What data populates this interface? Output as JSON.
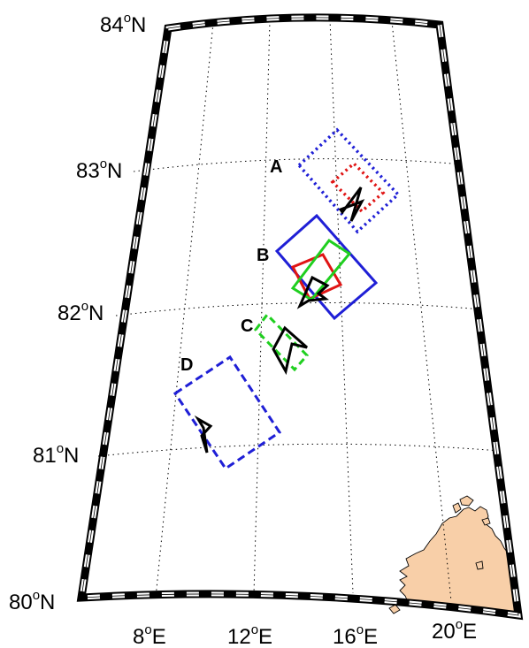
{
  "map": {
    "lat_labels": [
      {
        "deg": "84",
        "sup": "o",
        "hem": "N"
      },
      {
        "deg": "83",
        "sup": "o",
        "hem": "N"
      },
      {
        "deg": "82",
        "sup": "o",
        "hem": "N"
      },
      {
        "deg": "81",
        "sup": "o",
        "hem": "N"
      },
      {
        "deg": "80",
        "sup": "o",
        "hem": "N"
      }
    ],
    "lon_labels": [
      {
        "deg": "8",
        "sup": "o",
        "hem": "E"
      },
      {
        "deg": "12",
        "sup": "o",
        "hem": "E"
      },
      {
        "deg": "16",
        "sup": "o",
        "hem": "E"
      },
      {
        "deg": "20",
        "sup": "o",
        "hem": "E"
      }
    ],
    "regions": [
      {
        "label": "A",
        "linestyle": "dotted"
      },
      {
        "label": "B",
        "linestyle": "solid"
      },
      {
        "label": "C",
        "linestyle": "dashed"
      },
      {
        "label": "D",
        "linestyle": "dashed"
      }
    ],
    "colors": {
      "outer_box": "#1f1fd6",
      "inner_box": "#e01414",
      "alt_box": "#1fcf1f",
      "track": "#000000",
      "land": "#f8cfa8",
      "frame": "#000000"
    }
  }
}
